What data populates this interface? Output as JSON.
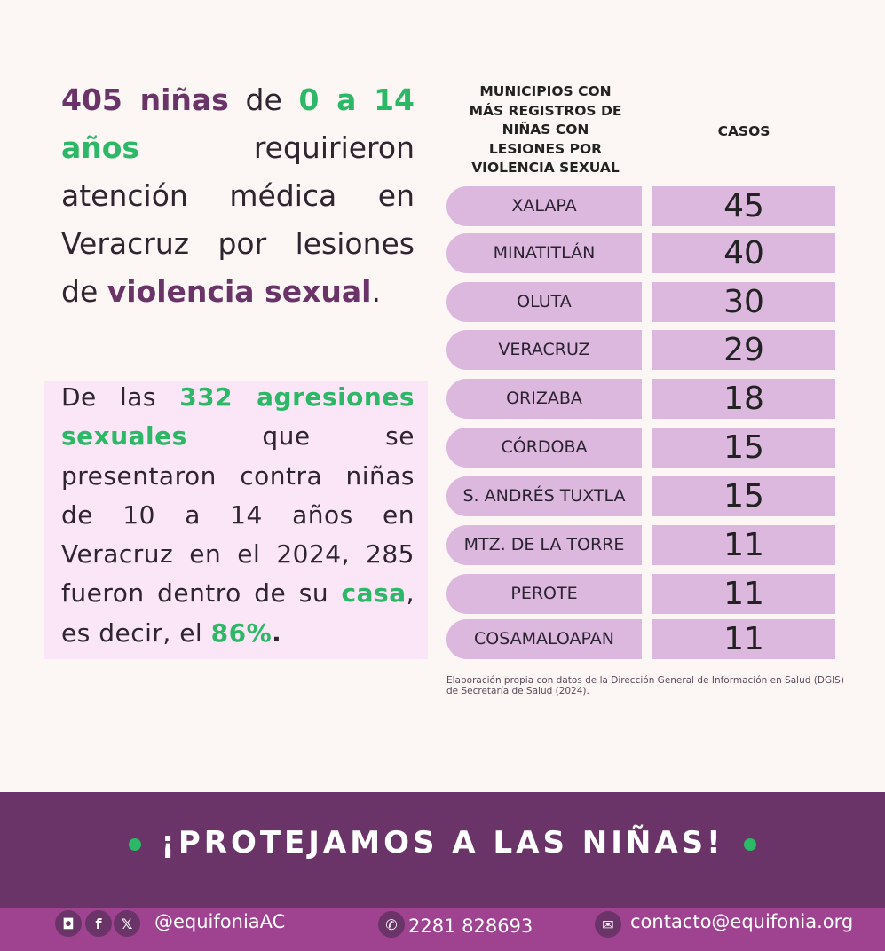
{
  "headline": {
    "n": "405 niñas",
    "t1": " de ",
    "age": "0 a 14 años",
    "t2": " requirieron atención médica en Veracruz por lesiones de ",
    "vs": "violencia sexual",
    "t3": "."
  },
  "box": {
    "t1": "De las ",
    "num": "332 agresiones sexuales",
    "t2": " que se presentaron contra niñas de 10 a 14 años en Veracruz en el 2024, 285 fueron dentro de su ",
    "casa": "casa",
    "t3": ", es decir, el ",
    "pct": "86%",
    "t4": "."
  },
  "table": {
    "header_municipio": "MUNICIPIOS CON MÁS REGISTROS DE NIÑAS CON LESIONES POR VIOLENCIA SEXUAL",
    "header_casos": "CASOS",
    "rows": [
      {
        "municipio": "XALAPA",
        "casos": "45"
      },
      {
        "municipio": "MINATITLÁN",
        "casos": "40"
      },
      {
        "municipio": "OLUTA",
        "casos": "30"
      },
      {
        "municipio": "VERACRUZ",
        "casos": "29"
      },
      {
        "municipio": "ORIZABA",
        "casos": "18"
      },
      {
        "municipio": "CÓRDOBA",
        "casos": "15"
      },
      {
        "municipio": "S. ANDRÉS TUXTLA",
        "casos": "15"
      },
      {
        "municipio": "MTZ. DE LA TORRE",
        "casos": "11"
      },
      {
        "municipio": "PEROTE",
        "casos": "11"
      },
      {
        "municipio": "COSAMALOAPAN",
        "casos": "11"
      }
    ],
    "note": "Elaboración propia con datos de la Dirección General de Información en Salud (DGIS) de Secretaría de Salud (2024)."
  },
  "banner": "¡PROTEJAMOS A LAS NIÑAS!",
  "footer": {
    "handle": "@equifoniaAC",
    "phone": "2281 828693",
    "email": "contacto@equifonia.org"
  },
  "colors": {
    "purple": "#6b3468",
    "green": "#2cb866",
    "pill": "#dcb8de",
    "footer": "#9f4290"
  }
}
